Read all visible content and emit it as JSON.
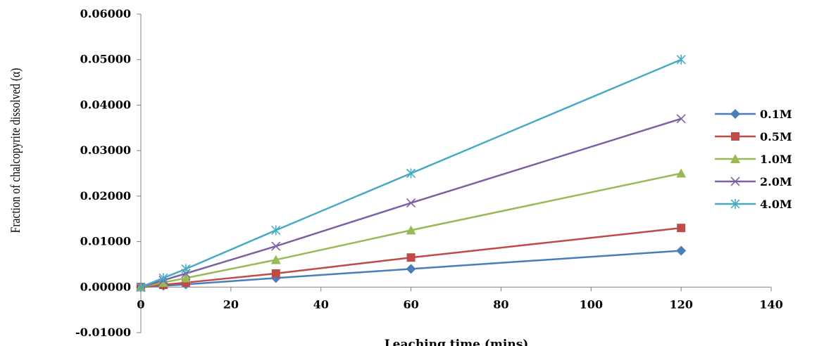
{
  "chart_data": {
    "type": "line",
    "title": "",
    "xlabel": "Leaching time (mins)",
    "ylabel": "Fraction of chalcopyrite dissolved (α)",
    "xlim": [
      0,
      140
    ],
    "ylim": [
      -0.01,
      0.06
    ],
    "x_ticks": [
      0,
      20,
      40,
      60,
      80,
      100,
      120,
      140
    ],
    "y_ticks": [
      -0.01,
      0.0,
      0.01,
      0.02,
      0.03,
      0.04,
      0.05,
      0.06
    ],
    "x_tick_labels": [
      "0",
      "20",
      "40",
      "60",
      "80",
      "100",
      "120",
      "140"
    ],
    "y_tick_labels": [
      "-0.01000",
      "0.00000",
      "0.01000",
      "0.02000",
      "0.03000",
      "0.04000",
      "0.05000",
      "0.06000"
    ],
    "grid": false,
    "legend_position": "right",
    "x": [
      0,
      5,
      10,
      30,
      60,
      120
    ],
    "series": [
      {
        "name": "0.1M",
        "color": "#4a7ebb",
        "marker": "diamond",
        "values": [
          0,
          0.0003,
          0.0006,
          0.002,
          0.004,
          0.008
        ]
      },
      {
        "name": "0.5M",
        "color": "#be4b48",
        "marker": "square",
        "values": [
          0,
          0.0005,
          0.001,
          0.003,
          0.0065,
          0.013
        ]
      },
      {
        "name": "1.0M",
        "color": "#98b954",
        "marker": "triangle",
        "values": [
          0,
          0.001,
          0.002,
          0.006,
          0.0125,
          0.025
        ]
      },
      {
        "name": "2.0M",
        "color": "#7d60a0",
        "marker": "x",
        "values": [
          0,
          0.0015,
          0.003,
          0.009,
          0.0185,
          0.037
        ]
      },
      {
        "name": "4.0M",
        "color": "#46aac5",
        "marker": "star",
        "values": [
          0,
          0.002,
          0.004,
          0.0125,
          0.025,
          0.05
        ]
      }
    ]
  }
}
